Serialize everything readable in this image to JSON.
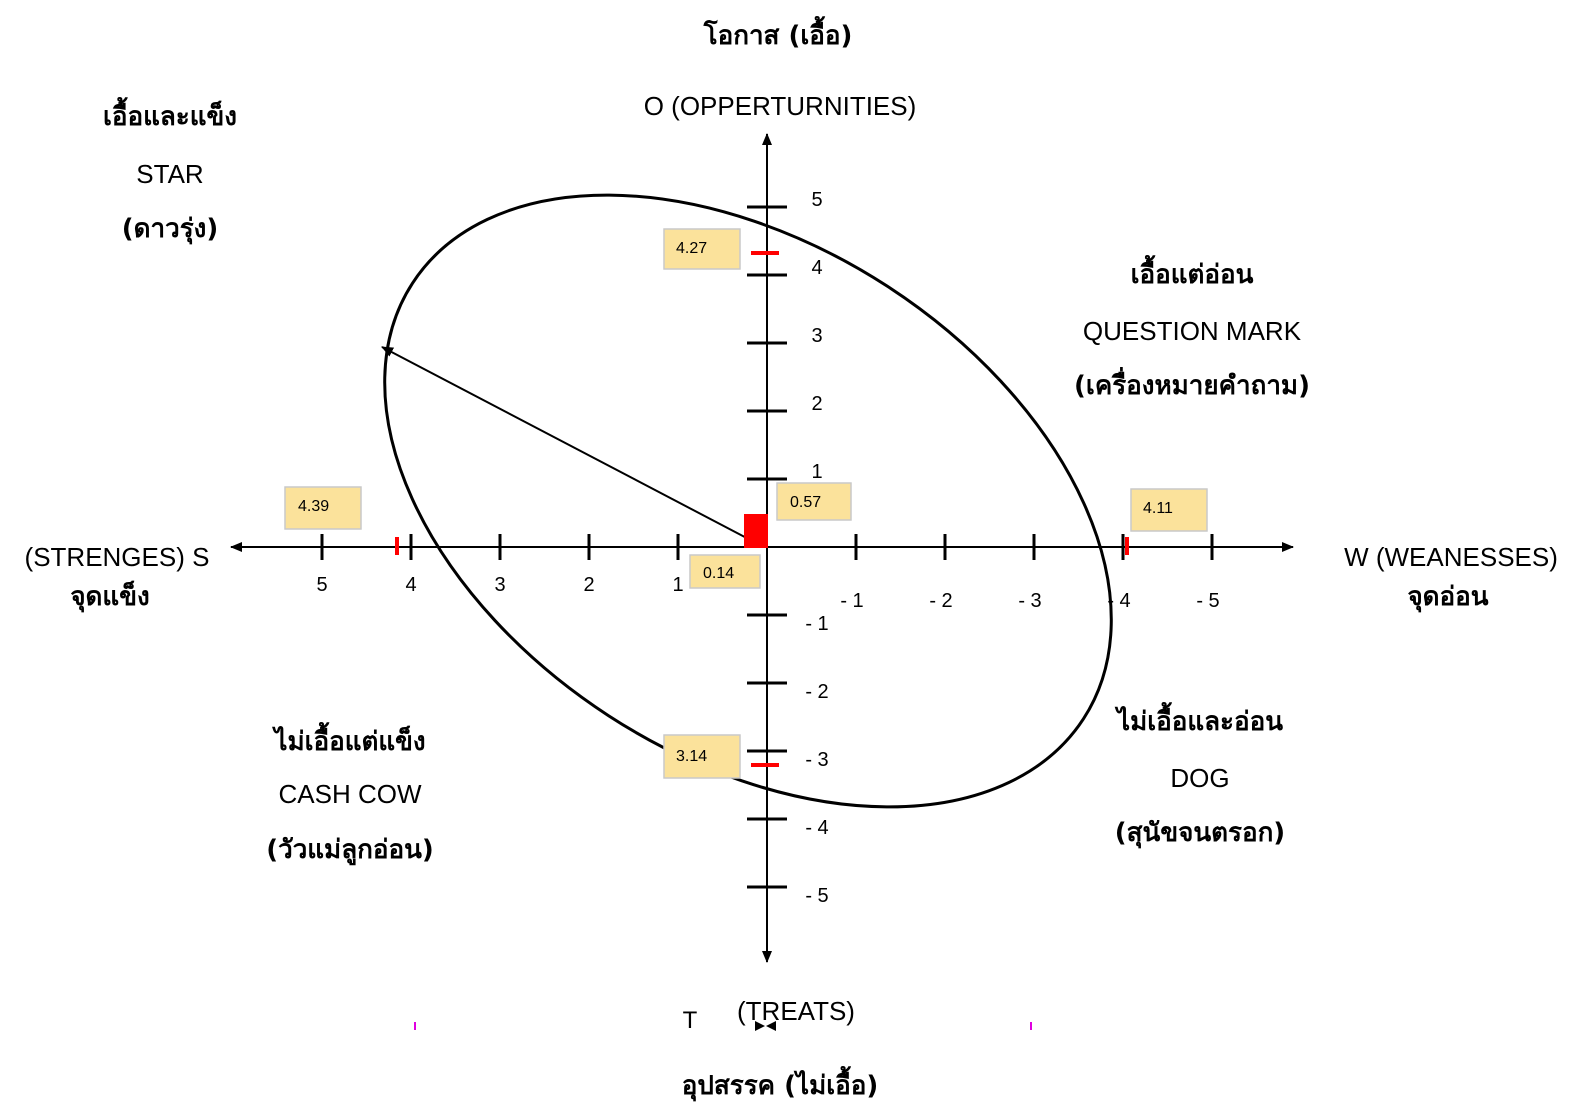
{
  "titles": {
    "top_thai": "โอกาส (เอื้อ)",
    "top_eng": "O (OPPERTURNITIES)",
    "bottom_eng_t": "T",
    "bottom_eng": "(TREATS)",
    "bottom_thai": "อุปสรรค (ไม่เอื้อ)",
    "left_eng": "(STRENGES) S",
    "left_thai": "จุดแข็ง",
    "right_eng": "W (WEANESSES)",
    "right_thai": "จุดอ่อน"
  },
  "quadrants": {
    "star": {
      "thai": "เอื้อและแข็ง",
      "eng": "STAR",
      "sub": "(ดาวรุ่ง)"
    },
    "question_mark": {
      "thai": "เอื้อแต่อ่อน",
      "eng": "QUESTION  MARK",
      "sub": "(เครื่องหมายคำถาม)"
    },
    "cash_cow": {
      "thai": "ไม่เอื้อแต่แข็ง",
      "eng": "CASH  COW",
      "sub": "(วัวแม่ลูกอ่อน)"
    },
    "dog": {
      "thai": "ไม่เอื้อและอ่อน",
      "eng": "DOG",
      "sub": "(สุนัขจนตรอก)"
    }
  },
  "axis_ticks": {
    "x_left": [
      "5",
      "4",
      "3",
      "2",
      "1"
    ],
    "x_right": [
      "- 1",
      "- 2",
      "- 3",
      "- 4",
      "- 5"
    ],
    "y_up": [
      "5",
      "4",
      "3",
      "2",
      "1"
    ],
    "y_down": [
      "- 1",
      "- 2",
      "- 3",
      "- 4",
      "- 5"
    ]
  },
  "value_boxes": {
    "opportunities": "4.27",
    "threats": "3.14",
    "strengths": "4.39",
    "weaknesses": "4.11",
    "net_y": "0.57",
    "net_x": "0.14"
  },
  "colors": {
    "box_fill": "#fbe29b",
    "marker": "#ff0000",
    "line": "#000000"
  }
}
